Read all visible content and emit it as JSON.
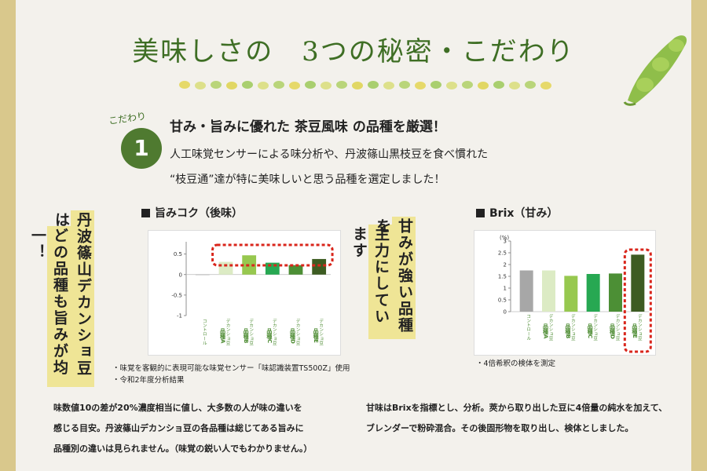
{
  "title": {
    "main": "美味しさの",
    "sub": "3つの秘密・こだわり"
  },
  "kodawari": {
    "label": "こだわり",
    "number": "1"
  },
  "heading": "甘み・旨みに優れた 茶豆風味 の品種を厳選！",
  "intro": {
    "line1": "人工味覚センサーによる味分析や、丹波篠山黒枝豆を食べ慣れた",
    "line2": "“枝豆通”達が特に美味しいと思う品種を選定しました！"
  },
  "left_callout": {
    "col1": "丹波篠山デカンショ豆は",
    "col2": "どの品種も旨みが均一！"
  },
  "middle_callout": {
    "col1": "甘みが強い品種を",
    "col2": "主力にしています"
  },
  "colors": {
    "green_dark": "#3e6e24",
    "callout_yellow": "#efe596",
    "highlight_red": "#d9261c"
  },
  "chart_data": [
    {
      "type": "bar",
      "title": "旨みコク（後味）",
      "categories": [
        "コントロール",
        "デカンショ豆品種A",
        "デカンショ豆品種B",
        "デカンショ豆品種C",
        "デカンショ豆品種D",
        "デカンショ豆品種E"
      ],
      "category_labels": [
        "コントロール",
        "デカンショ豆",
        "デカンショ豆",
        "デカンショ豆",
        "デカンショ豆",
        "デカンショ豆"
      ],
      "category_codes": [
        "",
        "品種A",
        "品種B",
        "品種C",
        "品種D",
        "品種E"
      ],
      "values": [
        0.0,
        0.31,
        0.47,
        0.29,
        0.23,
        0.38
      ],
      "colors": [
        "#a7a7a7",
        "#dcebc4",
        "#97c84f",
        "#27a852",
        "#4c8f35",
        "#3d5c22"
      ],
      "ylim": [
        -1,
        0.8
      ],
      "yticks": [
        "0.5",
        "0",
        "-0.5",
        "-1"
      ],
      "highlight": "品種A–E"
    },
    {
      "type": "bar",
      "title": "Brix（甘み）",
      "unit": "(%)",
      "categories": [
        "コントロール",
        "デカンショ豆品種A",
        "デカンショ豆品種B",
        "デカンショ豆品種C",
        "デカンショ豆品種D",
        "デカンショ豆品種E"
      ],
      "category_labels": [
        "コントロール",
        "デカンショ豆",
        "デカンショ豆",
        "デカンショ豆",
        "デカンショ豆",
        "デカンショ豆"
      ],
      "category_codes": [
        "",
        "品種A",
        "品種B",
        "品種C",
        "品種D",
        "品種E"
      ],
      "values": [
        1.75,
        1.75,
        1.52,
        1.6,
        1.62,
        2.42
      ],
      "colors": [
        "#a7a7a7",
        "#dcebc4",
        "#97c84f",
        "#27a852",
        "#4c8f35",
        "#3d5c22"
      ],
      "ylim": [
        0,
        3
      ],
      "yticks": [
        "3",
        "2.5",
        "2",
        "1.5",
        "1",
        "0.5",
        "0"
      ],
      "highlight": "品種E"
    }
  ],
  "notes": {
    "left1": "・味覚を客観的に表現可能な味覚センサー「味認識装置TS500Z」使用",
    "left2": "・令和2年度分析結果",
    "right1": "・4倍希釈の検体を測定"
  },
  "bottom_left": {
    "line1": "味数値10の差が20%濃度相当に値し、大多数の人が味の違いを",
    "line2": "感じる目安。丹波篠山デカンショ豆の各品種は総じてある旨みに",
    "line3": "品種別の違いは見られません。（味覚の鋭い人でもわかりません。）"
  },
  "bottom_right": {
    "line1": "甘味はBrixを指標とし、分析。莢から取り出した豆に4倍量の純水を加えて、",
    "line2": "ブレンダーで粉砕混合。その後固形物を取り出し、検体としました。"
  }
}
